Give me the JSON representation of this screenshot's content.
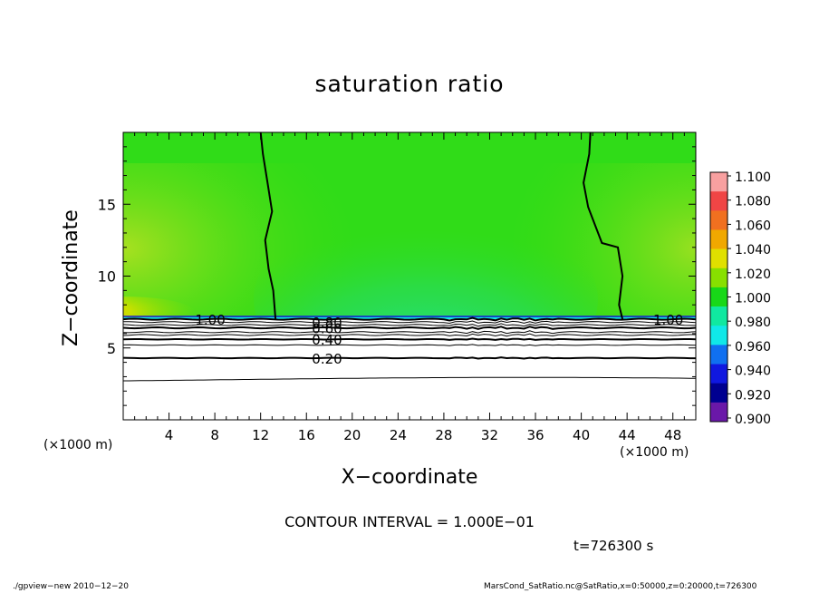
{
  "chart_data": {
    "type": "heatmap",
    "title": "saturation ratio",
    "xlabel": "X−coordinate",
    "ylabel": "Z−coordinate",
    "x_unit_left": "(×1000 m)",
    "x_unit_right": "(×1000 m)",
    "xlim": [
      0,
      50
    ],
    "ylim": [
      0,
      20
    ],
    "x_ticks": [
      4,
      8,
      12,
      16,
      20,
      24,
      28,
      32,
      36,
      40,
      44,
      48
    ],
    "y_ticks": [
      5,
      10,
      15
    ],
    "colorbar": {
      "levels": [
        "1.100",
        "1.080",
        "1.060",
        "1.040",
        "1.020",
        "1.000",
        "0.980",
        "0.960",
        "0.940",
        "0.920",
        "0.900"
      ],
      "colors": [
        "#f8a0a0",
        "#f04545",
        "#f07020",
        "#f0a800",
        "#e0e000",
        "#88e000",
        "#18d818",
        "#10e8a0",
        "#10e8e8",
        "#1070f0",
        "#1018e0",
        "#000090",
        "#6a18a8"
      ]
    },
    "contour_labels": [
      {
        "text": "1.00",
        "x": 7.6,
        "z": 7.0
      },
      {
        "text": "1.00",
        "x": 47.6,
        "z": 7.0
      },
      {
        "text": "0.80",
        "x": 17.8,
        "z": 6.8
      },
      {
        "text": "0.60",
        "x": 17.8,
        "z": 6.4
      },
      {
        "text": "0.40",
        "x": 17.8,
        "z": 5.6
      },
      {
        "text": "0.20",
        "x": 17.8,
        "z": 4.3
      }
    ],
    "annotation": "CONTOUR INTERVAL = 1.000E−01",
    "time": "t=726300 s"
  },
  "footer": {
    "left": "./gpview−new   2010−12−20",
    "right": "MarsCond_SatRatio.nc@SatRatio,x=0:50000,z=0:20000,t=726300"
  }
}
